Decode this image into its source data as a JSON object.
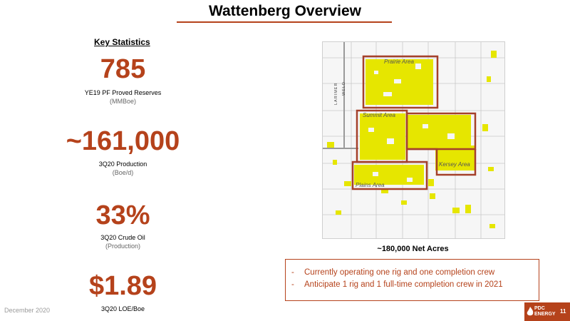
{
  "title": "Wattenberg Overview",
  "key_statistics": {
    "heading": "Key Statistics",
    "stats": [
      {
        "value": "785",
        "label": "YE19 PF Proved Reserves",
        "sub": "(MMBoe)"
      },
      {
        "value": "~161,000",
        "label": "3Q20 Production",
        "sub": "(Boe/d)"
      },
      {
        "value": "33%",
        "label": "3Q20 Crude Oil",
        "sub": "(Production)"
      },
      {
        "value": "$1.89",
        "label": "3Q20 LOE/Boe",
        "sub": ""
      }
    ]
  },
  "map": {
    "county_left": "LARIMER",
    "county_right": "WELD",
    "areas": [
      "Prairie Area",
      "Summit Area",
      "Kersey Area",
      "Plains Area"
    ],
    "caption": "~180,000 Net Acres",
    "acreage_color": "#e6e600",
    "outline_color": "#a5402a"
  },
  "bullets": [
    "Currently operating one rig and one completion crew",
    "Anticipate 1 rig and 1 full-time completion crew in 2021"
  ],
  "bullet_marker": "-",
  "footer": {
    "date": "December 2020",
    "logo_line1": "PDC",
    "logo_line2": "ENERGY",
    "page": "11"
  },
  "colors": {
    "accent": "#b5421b"
  }
}
